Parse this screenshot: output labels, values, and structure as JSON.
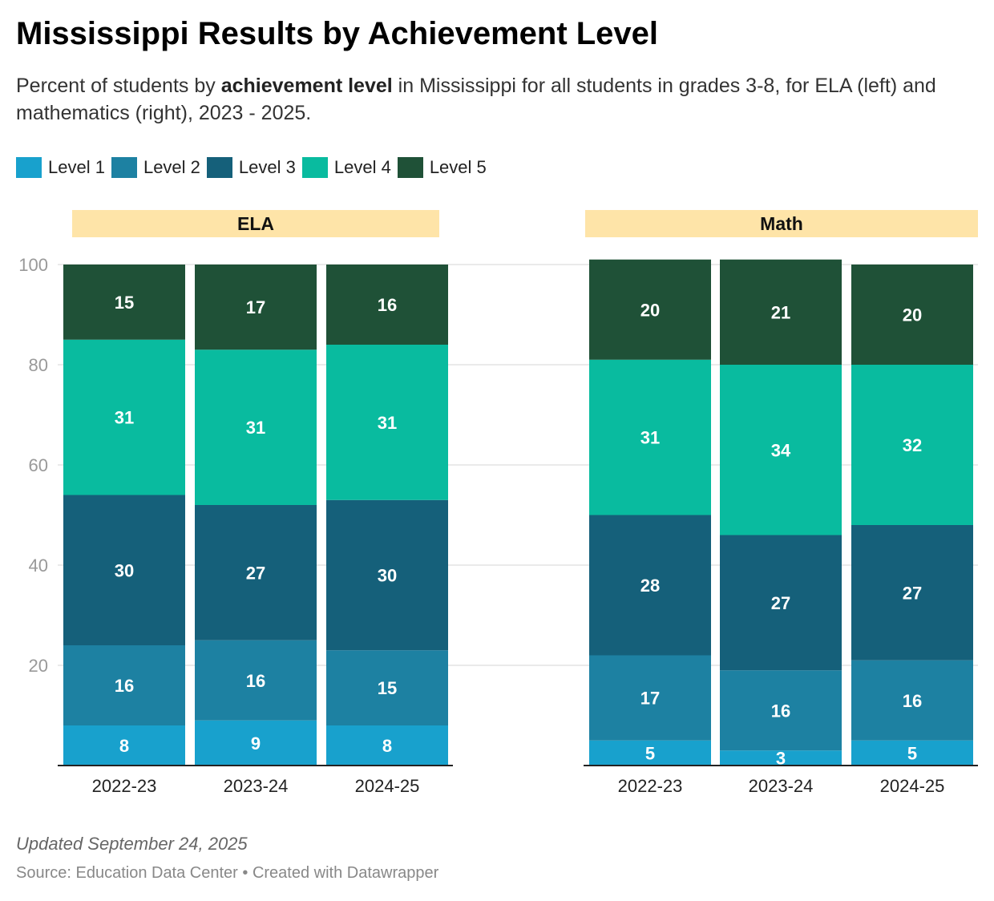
{
  "title": "Mississippi Results by Achievement Level",
  "subtitle": {
    "pre": "Percent of students by ",
    "bold": "achievement level",
    "post": " in Mississippi for all students in grades 3-8, for ELA (left) and mathematics (right), 2023 - 2025."
  },
  "footer": {
    "updated": "Updated September 24, 2025",
    "source": "Source: Education Data Center • Created with Datawrapper"
  },
  "chart_data": {
    "type": "bar",
    "stacked": true,
    "levels": [
      {
        "name": "Level 1",
        "color": "#18a1cd"
      },
      {
        "name": "Level 2",
        "color": "#1d81a2"
      },
      {
        "name": "Level 3",
        "color": "#15607a"
      },
      {
        "name": "Level 4",
        "color": "#09bb9f"
      },
      {
        "name": "Level 5",
        "color": "#1f5137"
      }
    ],
    "ylim": [
      0,
      100
    ],
    "yticks": [
      20,
      40,
      60,
      80,
      100
    ],
    "grid": true,
    "legend_placement": "top-left",
    "panel_header_color": "#fee4a8",
    "panels": [
      {
        "title": "ELA",
        "categories": [
          "2022-23",
          "2023-24",
          "2024-25"
        ],
        "values": [
          [
            8,
            16,
            30,
            31,
            15
          ],
          [
            9,
            16,
            27,
            31,
            17
          ],
          [
            8,
            15,
            30,
            31,
            16
          ]
        ]
      },
      {
        "title": "Math",
        "categories": [
          "2022-23",
          "2023-24",
          "2024-25"
        ],
        "values": [
          [
            5,
            17,
            28,
            31,
            20
          ],
          [
            3,
            16,
            27,
            34,
            21
          ],
          [
            5,
            16,
            27,
            32,
            20
          ]
        ]
      }
    ]
  }
}
